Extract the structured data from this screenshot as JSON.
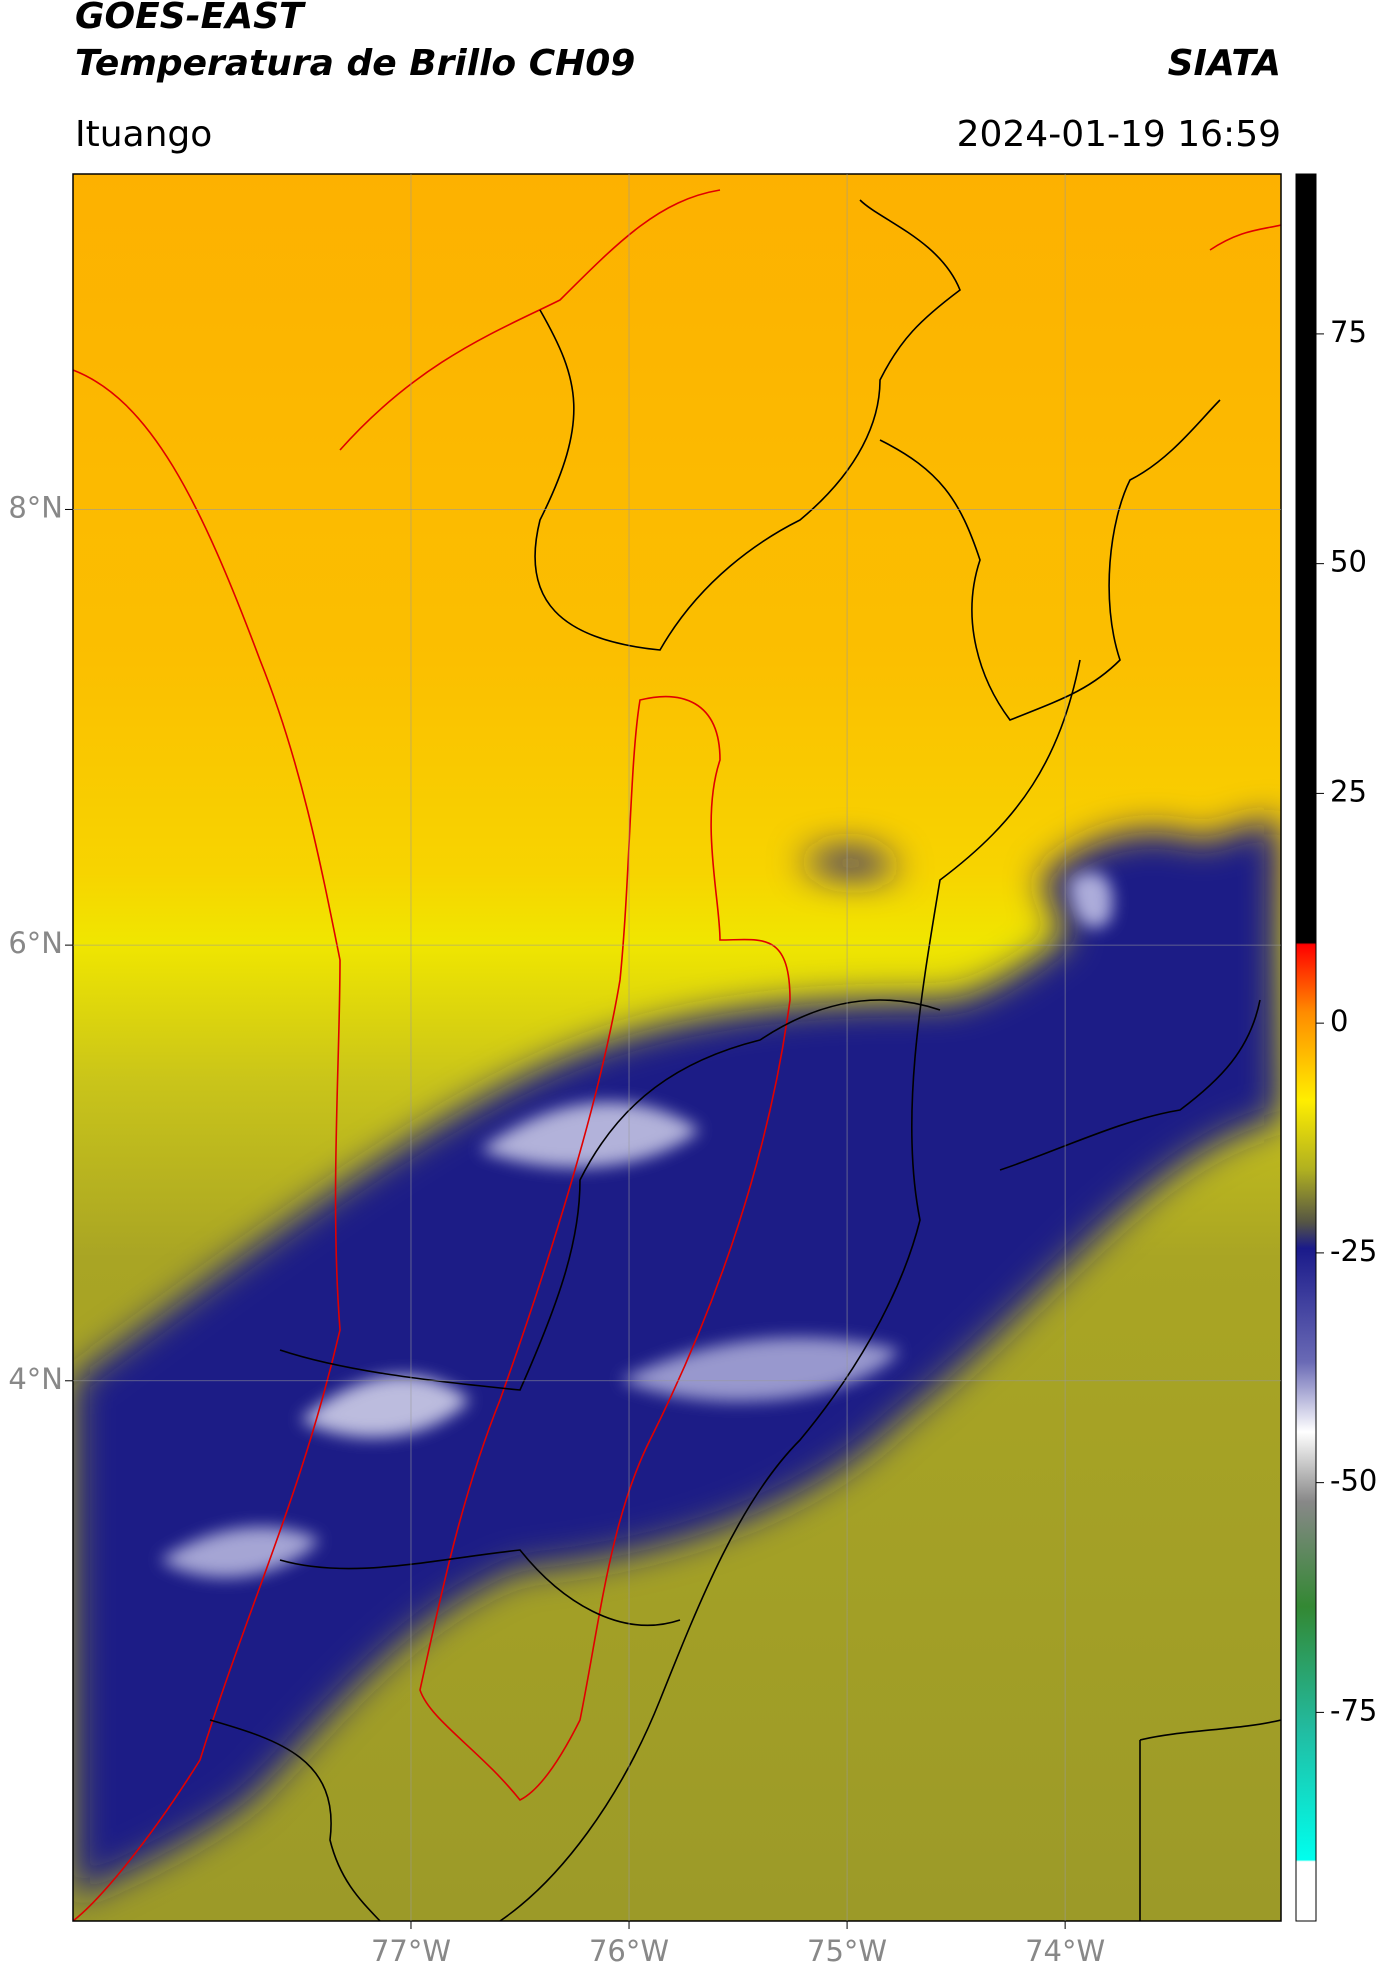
{
  "header": {
    "title_line1": "GOES-EAST",
    "title_line2": "Temperatura de Brillo CH09",
    "source": "SIATA",
    "location": "Ituango",
    "datetime": "2024-01-19 16:59"
  },
  "map": {
    "xlim": [
      -78.55,
      -73.01
    ],
    "ylim": [
      1.52,
      9.54
    ],
    "xticks": [
      {
        "value": -77,
        "label": "77°W"
      },
      {
        "value": -76,
        "label": "76°W"
      },
      {
        "value": -75,
        "label": "75°W"
      },
      {
        "value": -74,
        "label": "74°W"
      }
    ],
    "yticks": [
      {
        "value": 4,
        "label": "4°N"
      },
      {
        "value": 6,
        "label": "6°N"
      },
      {
        "value": 8,
        "label": "8°N"
      }
    ]
  },
  "colorbar": {
    "lim": [
      -97.7,
      92.4
    ],
    "ticks": [
      -75,
      -50,
      -25,
      0,
      25,
      50,
      75
    ]
  }
}
